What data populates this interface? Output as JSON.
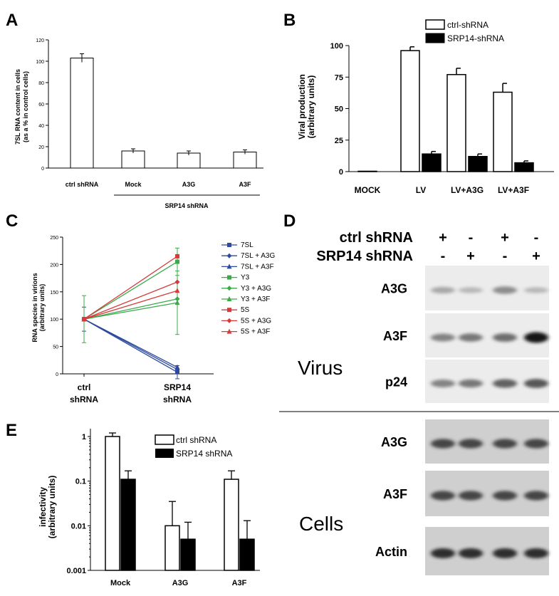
{
  "panels": {
    "A": "A",
    "B": "B",
    "C": "C",
    "D": "D",
    "E": "E"
  },
  "chart_data": [
    {
      "panel": "A",
      "type": "bar",
      "ylabel_lines": [
        "7SL RNA content in cells",
        "(as a % in control cells)"
      ],
      "ylim": [
        0,
        120
      ],
      "yticks": [
        0,
        20,
        40,
        60,
        80,
        100,
        120
      ],
      "ytick_labels": [
        "0",
        "20",
        "40",
        "60",
        "80",
        "100",
        "120"
      ],
      "categories": [
        "ctrl shRNA",
        "Mock",
        "A3G",
        "A3F"
      ],
      "values": [
        103,
        16,
        14,
        15
      ],
      "errors": [
        4,
        2,
        2,
        2
      ],
      "group_label": "SRP14 shRNA"
    },
    {
      "panel": "B",
      "type": "bar",
      "ylabel_lines": [
        "Viral production",
        "(arbitrary units)"
      ],
      "ylim": [
        0,
        100
      ],
      "yticks": [
        0,
        25,
        50,
        75,
        100
      ],
      "ytick_labels": [
        "0",
        "25",
        "50",
        "75",
        "100"
      ],
      "categories": [
        "MOCK",
        "LV",
        "LV+A3G",
        "LV+A3F"
      ],
      "series": [
        {
          "name": "ctrl-shRNA",
          "values": [
            0.3,
            96,
            77,
            63
          ],
          "errors": [
            0,
            3,
            5,
            7
          ],
          "color": "#ffffff"
        },
        {
          "name": "SRP14-shRNA",
          "values": [
            0,
            14,
            12,
            7
          ],
          "errors": [
            0,
            2,
            2,
            1.5
          ],
          "color": "#000000"
        }
      ]
    },
    {
      "panel": "C",
      "type": "line",
      "ylabel_lines": [
        "RNA species in virions",
        "(arbitrary units)"
      ],
      "ylim": [
        0,
        250
      ],
      "yticks": [
        0,
        50,
        100,
        150,
        200,
        250
      ],
      "ytick_labels": [
        "0",
        "50",
        "100",
        "150",
        "200",
        "250"
      ],
      "categories": [
        [
          "ctrl",
          "shRNA"
        ],
        [
          "SRP14",
          "shRNA"
        ]
      ],
      "series": [
        {
          "name": "7SL",
          "values": [
            100,
            3
          ],
          "errors": [
            22,
            12
          ],
          "color": "#2e4a9e",
          "marker": "square"
        },
        {
          "name": "7SL + A3G",
          "values": [
            100,
            8
          ],
          "errors": [
            0,
            0
          ],
          "color": "#2e4a9e",
          "marker": "diamond"
        },
        {
          "name": "7SL + A3F",
          "values": [
            100,
            12
          ],
          "errors": [
            0,
            0
          ],
          "color": "#2e4a9e",
          "marker": "triangle"
        },
        {
          "name": "Y3",
          "values": [
            100,
            205
          ],
          "errors": [
            0,
            25
          ],
          "color": "#3aaa48",
          "marker": "square"
        },
        {
          "name": "Y3 + A3G",
          "values": [
            100,
            137
          ],
          "errors": [
            0,
            0
          ],
          "color": "#3aaa48",
          "marker": "diamond"
        },
        {
          "name": "Y3 + A3F",
          "values": [
            100,
            130
          ],
          "errors": [
            43,
            58
          ],
          "color": "#3aaa48",
          "marker": "triangle"
        },
        {
          "name": "5S",
          "values": [
            100,
            215
          ],
          "errors": [
            0,
            0
          ],
          "color": "#d63a3a",
          "marker": "square"
        },
        {
          "name": "5S + A3G",
          "values": [
            100,
            168
          ],
          "errors": [
            0,
            0
          ],
          "color": "#d63a3a",
          "marker": "diamond"
        },
        {
          "name": "5S + A3F",
          "values": [
            100,
            152
          ],
          "errors": [
            0,
            0
          ],
          "color": "#d63a3a",
          "marker": "triangle"
        }
      ]
    },
    {
      "panel": "E",
      "type": "bar",
      "scale": "log",
      "ylabel_lines": [
        "infectivity",
        "(arbitrary units)"
      ],
      "ylim": [
        0.001,
        1.5
      ],
      "yticks": [
        0.001,
        0.01,
        0.1,
        1
      ],
      "ytick_labels": [
        "0.001",
        "0.01",
        "0.1",
        "1"
      ],
      "categories": [
        "Mock",
        "A3G",
        "A3F"
      ],
      "series": [
        {
          "name": "ctrl shRNA",
          "values": [
            1,
            0.01,
            0.11
          ],
          "errors_upper": [
            1.2,
            0.035,
            0.17
          ],
          "color": "#ffffff"
        },
        {
          "name": "SRP14 shRNA",
          "values": [
            0.11,
            0.005,
            0.005
          ],
          "errors_upper": [
            0.17,
            0.012,
            0.013
          ],
          "color": "#000000"
        }
      ]
    }
  ],
  "blot": {
    "rows": [
      {
        "label": "ctrl shRNA",
        "marks": [
          "+",
          "-",
          "+",
          "-"
        ]
      },
      {
        "label": "SRP14 shRNA",
        "marks": [
          "-",
          "+",
          "-",
          "+"
        ]
      }
    ],
    "virus_label": "Virus",
    "cells_label": "Cells",
    "virus_bands": [
      {
        "label": "A3G",
        "intensity": [
          0.35,
          0.25,
          0.5,
          0.25
        ]
      },
      {
        "label": "A3F",
        "intensity": [
          0.55,
          0.6,
          0.65,
          1.0
        ]
      },
      {
        "label": "p24",
        "intensity": [
          0.55,
          0.6,
          0.7,
          0.75
        ]
      }
    ],
    "cell_bands": [
      {
        "label": "A3G",
        "intensity": [
          0.8,
          0.8,
          0.8,
          0.8
        ]
      },
      {
        "label": "A3F",
        "intensity": [
          0.8,
          0.8,
          0.8,
          0.8
        ]
      },
      {
        "label": "Actin",
        "intensity": [
          0.9,
          0.9,
          0.9,
          0.9
        ]
      }
    ]
  }
}
